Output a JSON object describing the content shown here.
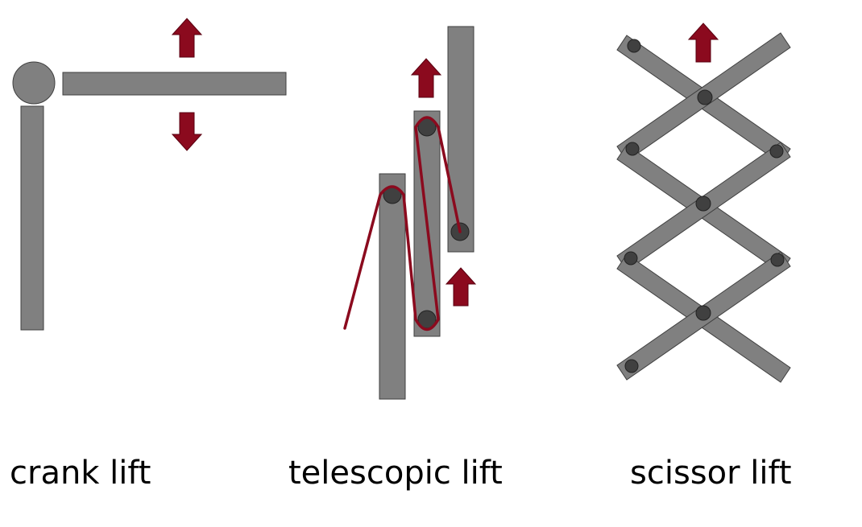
{
  "colors": {
    "bar_fill": "#808080",
    "bar_stroke": "#3f3f3f",
    "pivot_fill": "#404040",
    "cable": "#8b0a1e",
    "arrow": "#8b0a1e"
  },
  "diagrams": {
    "crank": {
      "label": "crank lift"
    },
    "telescopic": {
      "label": "telescopic lift"
    },
    "scissor": {
      "label": "scissor lift"
    }
  }
}
